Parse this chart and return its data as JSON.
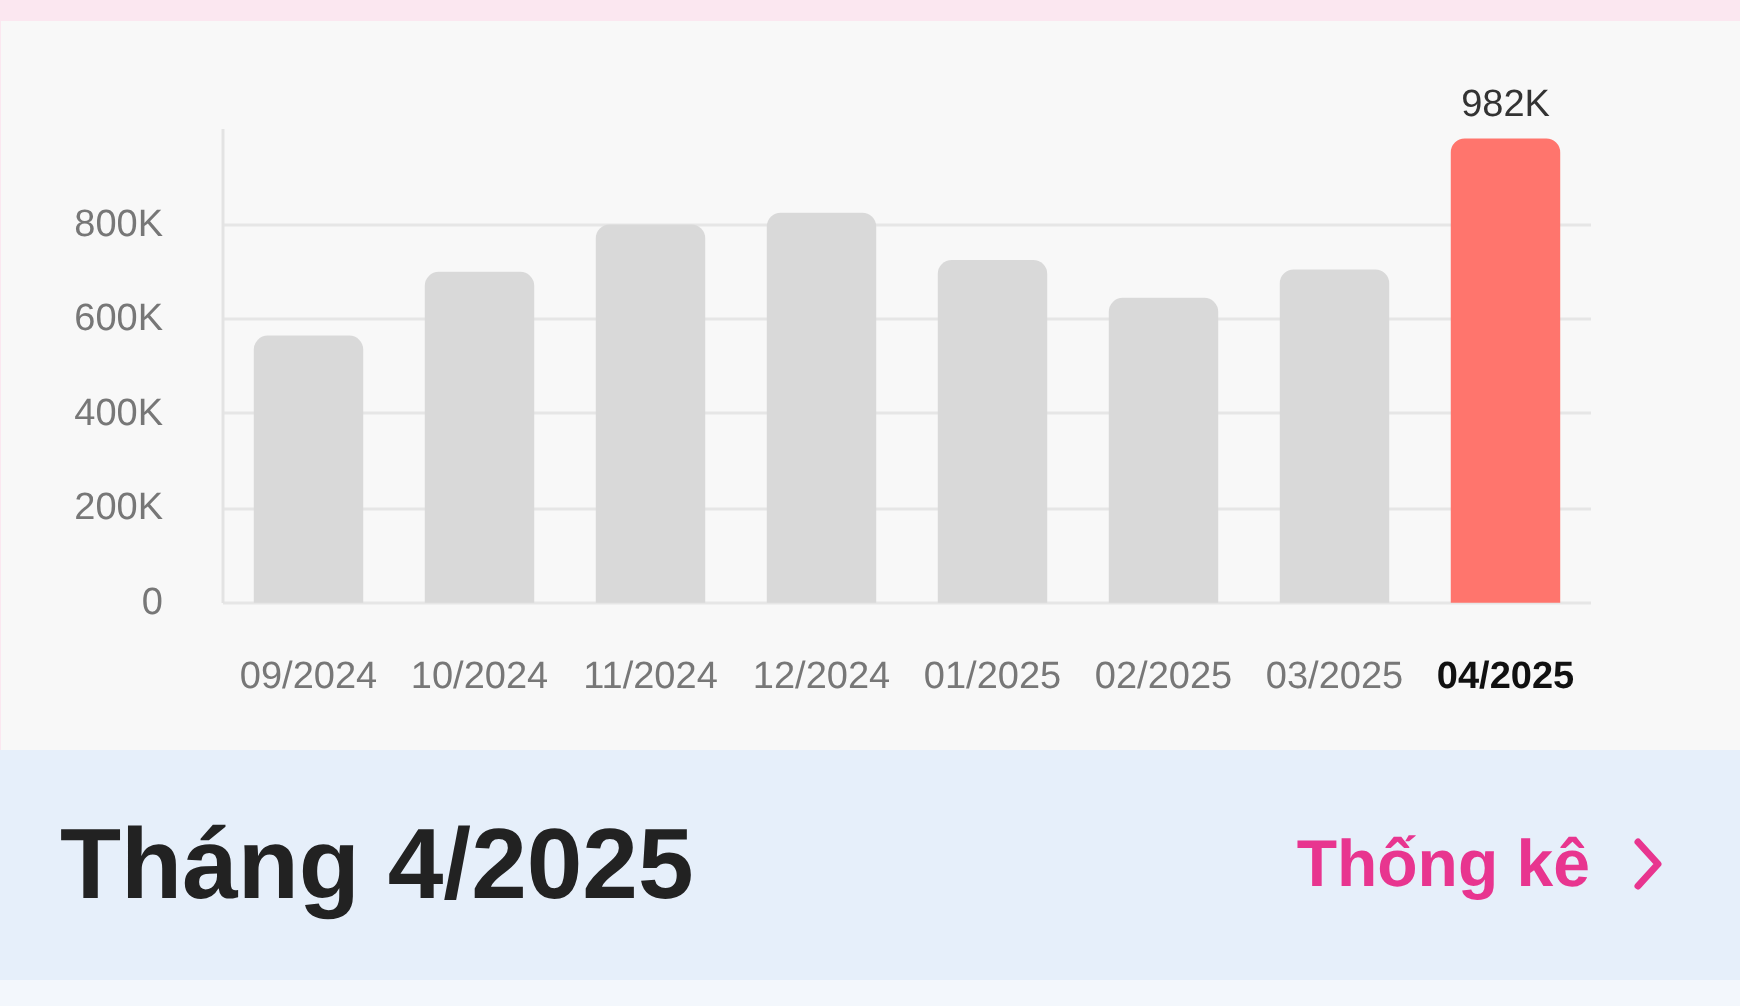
{
  "chart_data": {
    "type": "bar",
    "categories": [
      "09/2024",
      "10/2024",
      "11/2024",
      "12/2024",
      "01/2025",
      "02/2025",
      "03/2025",
      "04/2025"
    ],
    "values": [
      565000,
      700000,
      800000,
      825000,
      725000,
      645000,
      705000,
      982000
    ],
    "colors": [
      "#d9d9d9",
      "#d9d9d9",
      "#d9d9d9",
      "#d9d9d9",
      "#d9d9d9",
      "#d9d9d9",
      "#d9d9d9",
      "#ff756d"
    ],
    "value_labels": [
      null,
      null,
      null,
      null,
      null,
      null,
      null,
      "982K"
    ],
    "ylim": [
      0,
      1000000
    ],
    "yticks": [
      {
        "value": 0,
        "label": "0"
      },
      {
        "value": 200000,
        "label": "200K"
      },
      {
        "value": 400000,
        "label": "400K"
      },
      {
        "value": 600000,
        "label": "600K"
      },
      {
        "value": 800000,
        "label": "800K"
      }
    ],
    "grid": "y",
    "annotations": [
      "Tháng 4/2025",
      "Thống kê"
    ]
  }
}
